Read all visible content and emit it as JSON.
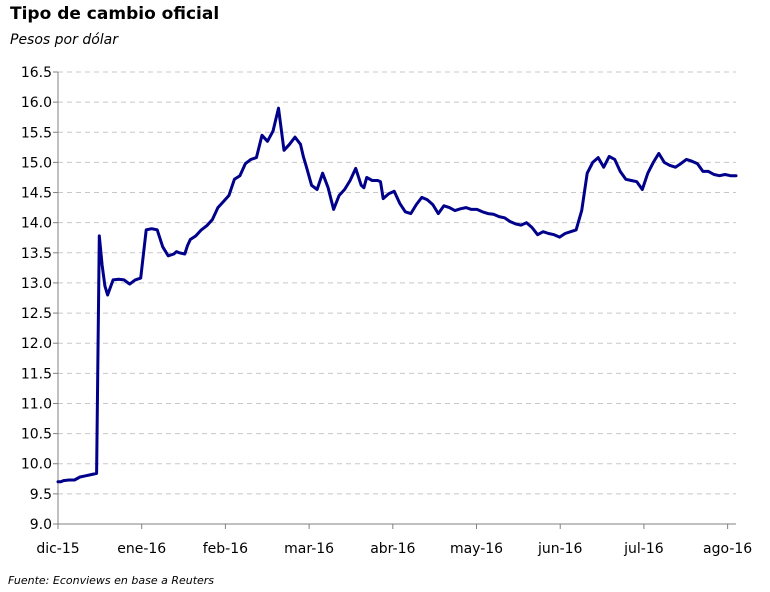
{
  "title": "Tipo de cambio oficial",
  "subtitle": "Pesos por dólar",
  "source": "Fuente: Econviews en base a Reuters",
  "colors": {
    "line": "#00008b",
    "grid": "#c8c8c8",
    "axis": "#808080"
  },
  "chart_data": {
    "type": "line",
    "title": "Tipo de cambio oficial",
    "subtitle": "Pesos por dólar",
    "xlabel": "",
    "ylabel": "",
    "ylim": [
      9.0,
      16.5
    ],
    "yticks": [
      "16.5",
      "16.0",
      "15.5",
      "15.0",
      "14.5",
      "14.0",
      "13.5",
      "13.0",
      "12.5",
      "12.0",
      "11.5",
      "11.0",
      "10.5",
      "10.0",
      "9.5",
      "9.0"
    ],
    "xticks": [
      "dic-15",
      "ene-16",
      "feb-16",
      "mar-16",
      "abr-16",
      "may-16",
      "jun-16",
      "jul-16",
      "ago-16"
    ],
    "grid": true,
    "series": [
      {
        "x": [
          0,
          1,
          2,
          4,
          6,
          8,
          10,
          12,
          14,
          15,
          16,
          17,
          18,
          20,
          22,
          24,
          26,
          28,
          30,
          32,
          34,
          36,
          38,
          40,
          42,
          43,
          44,
          46,
          47,
          48,
          50,
          52,
          54,
          56,
          58,
          60,
          62,
          64,
          66,
          68,
          70,
          72,
          74,
          76,
          78,
          80,
          82,
          84,
          86,
          88,
          89,
          90,
          92,
          94,
          96,
          98,
          100,
          102,
          104,
          106,
          108,
          110,
          111,
          112,
          114,
          116,
          117,
          118,
          120,
          122,
          124,
          126,
          128,
          130,
          132,
          134,
          136,
          138,
          140,
          142,
          144,
          146,
          148,
          150,
          152,
          154,
          156,
          158,
          160,
          162,
          164,
          166,
          168,
          170,
          172,
          174,
          176,
          178,
          180,
          182,
          184,
          186,
          188,
          190,
          192,
          194,
          196,
          198,
          200,
          202,
          204,
          206,
          208,
          210,
          212,
          214,
          216,
          218,
          220,
          222,
          224,
          226,
          228,
          230,
          232,
          234,
          236,
          238,
          240,
          242,
          244,
          246
        ],
        "values": [
          9.7,
          9.7,
          9.72,
          9.73,
          9.73,
          9.78,
          9.8,
          9.82,
          9.84,
          13.78,
          13.3,
          12.95,
          12.8,
          13.05,
          13.06,
          13.05,
          12.98,
          13.05,
          13.08,
          13.88,
          13.9,
          13.88,
          13.6,
          13.45,
          13.48,
          13.52,
          13.5,
          13.48,
          13.62,
          13.72,
          13.78,
          13.88,
          13.95,
          14.05,
          14.25,
          14.35,
          14.45,
          14.72,
          14.78,
          14.98,
          15.05,
          15.08,
          15.45,
          15.35,
          15.52,
          15.9,
          15.2,
          15.3,
          15.42,
          15.3,
          15.1,
          14.95,
          14.62,
          14.55,
          14.82,
          14.58,
          14.22,
          14.45,
          14.55,
          14.7,
          14.9,
          14.62,
          14.58,
          14.75,
          14.7,
          14.7,
          14.68,
          14.4,
          14.48,
          14.52,
          14.32,
          14.18,
          14.15,
          14.3,
          14.42,
          14.38,
          14.3,
          14.15,
          14.28,
          14.25,
          14.2,
          14.23,
          14.25,
          14.22,
          14.22,
          14.18,
          14.15,
          14.14,
          14.1,
          14.08,
          14.02,
          13.98,
          13.96,
          14.0,
          13.92,
          13.8,
          13.85,
          13.82,
          13.8,
          13.76,
          13.82,
          13.85,
          13.88,
          14.2,
          14.82,
          15.0,
          15.08,
          14.92,
          15.1,
          15.05,
          14.85,
          14.72,
          14.7,
          14.68,
          14.55,
          14.82,
          15.0,
          15.15,
          15.0,
          14.95,
          14.92,
          14.98,
          15.05,
          15.02,
          14.98,
          14.85,
          14.85,
          14.8,
          14.78,
          14.8,
          14.78,
          14.78
        ]
      }
    ]
  }
}
